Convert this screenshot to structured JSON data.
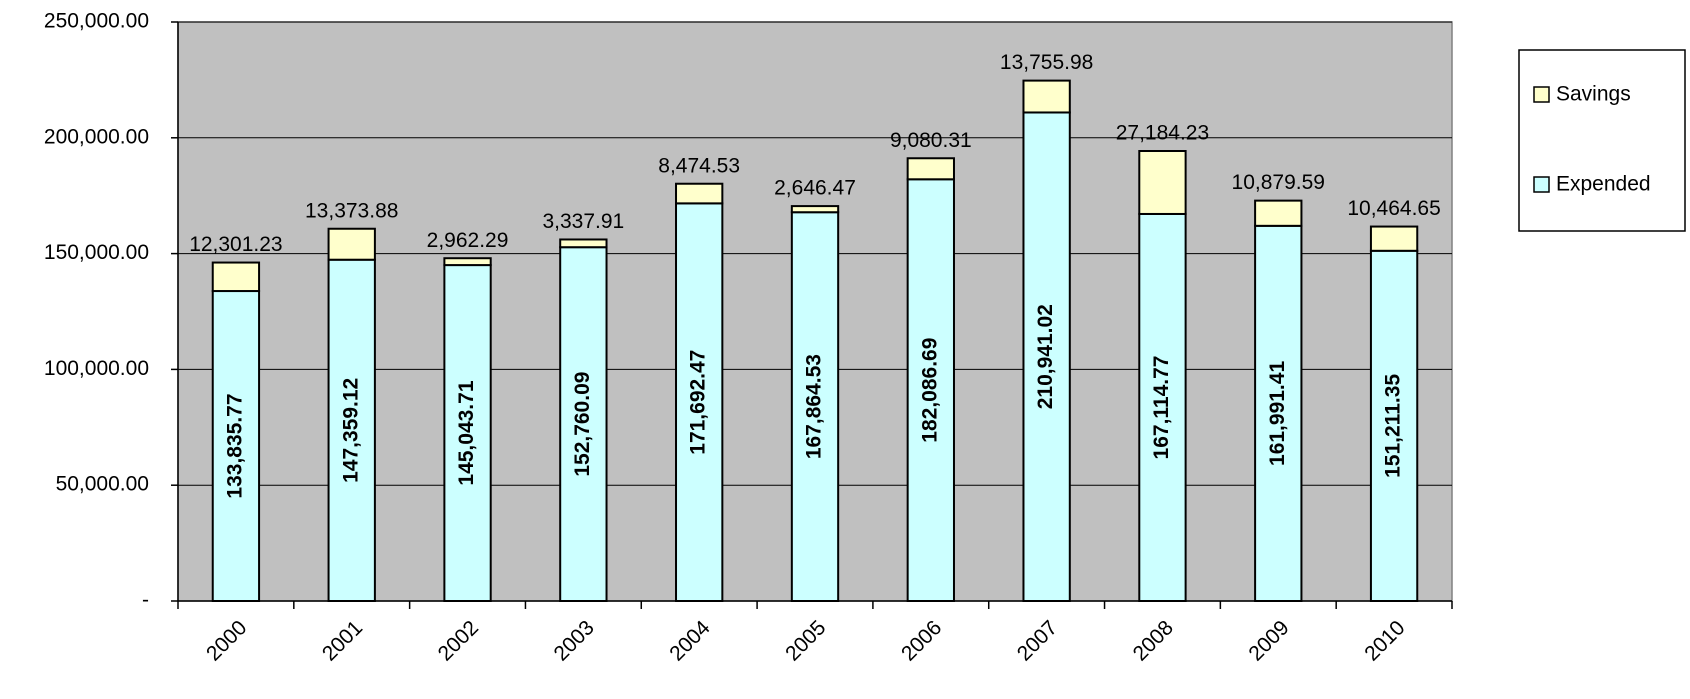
{
  "chart_data": {
    "type": "stacked_bar",
    "categories": [
      "2000",
      "2001",
      "2002",
      "2003",
      "2004",
      "2005",
      "2006",
      "2007",
      "2008",
      "2009",
      "2010"
    ],
    "series": [
      {
        "name": "Expended",
        "color": "#ccffff",
        "values": [
          133835.77,
          147359.12,
          145043.71,
          152760.09,
          171692.47,
          167864.53,
          182086.69,
          210941.02,
          167114.77,
          161991.41,
          151211.35
        ],
        "value_labels": [
          "133,835.77",
          "147,359.12",
          "145,043.71",
          "152,760.09",
          "171,692.47",
          "167,864.53",
          "182,086.69",
          "210,941.02",
          "167,114.77",
          "161,991.41",
          "151,211.35"
        ]
      },
      {
        "name": "Savings",
        "color": "#ffffcc",
        "values": [
          12301.23,
          13373.88,
          2962.29,
          3337.91,
          8474.53,
          2646.47,
          9080.31,
          13755.98,
          27184.23,
          10879.59,
          10464.65
        ],
        "value_labels": [
          "12,301.23",
          "13,373.88",
          "2,962.29",
          "3,337.91",
          "8,474.53",
          "2,646.47",
          "9,080.31",
          "13,755.98",
          "27,184.23",
          "10,879.59",
          "10,464.65"
        ]
      }
    ],
    "ylim": [
      0,
      250000
    ],
    "yticks": [
      {
        "value": 0,
        "label": "-"
      },
      {
        "value": 50000,
        "label": "50,000.00"
      },
      {
        "value": 100000,
        "label": "100,000.00"
      },
      {
        "value": 150000,
        "label": "150,000.00"
      },
      {
        "value": 200000,
        "label": "200,000.00"
      },
      {
        "value": 250000,
        "label": "250,000.00"
      }
    ],
    "grid": true,
    "legend": "right",
    "background": "#c0c0c0"
  }
}
